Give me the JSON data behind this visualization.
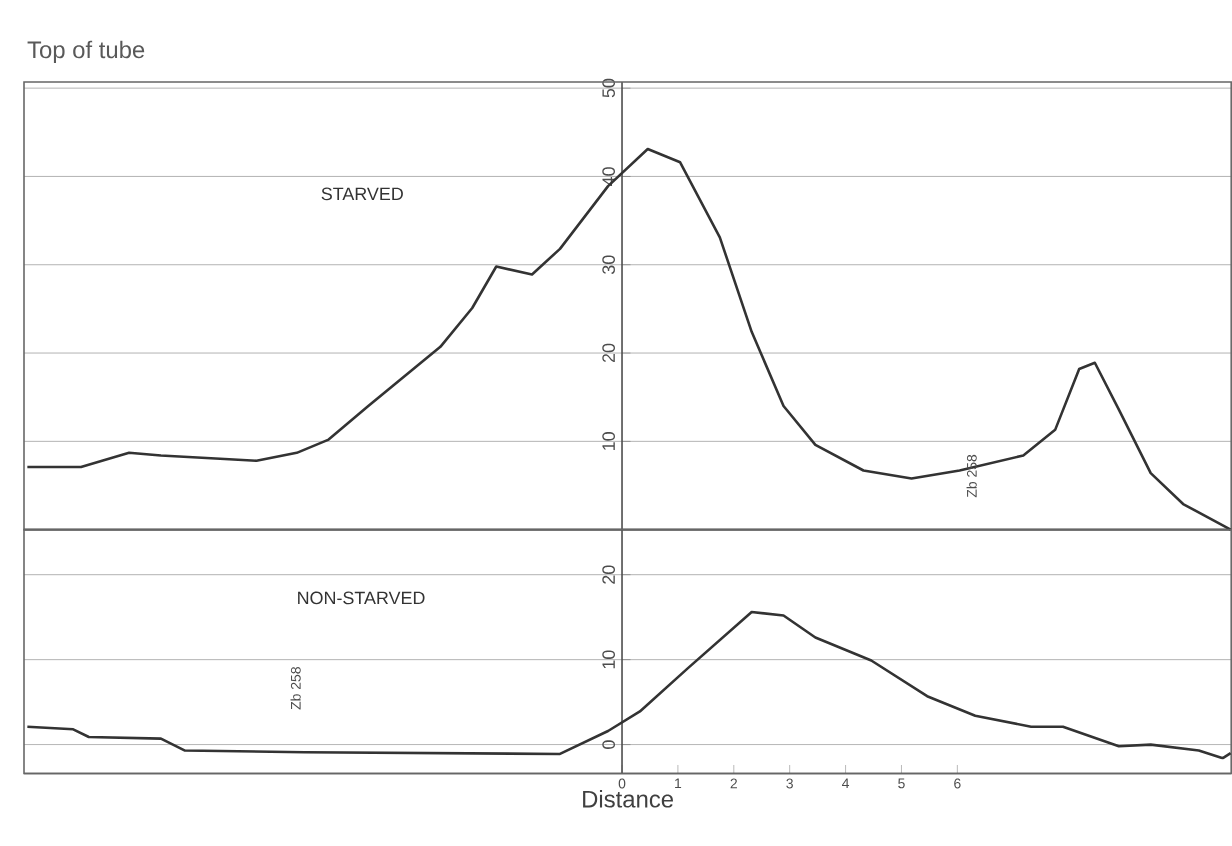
{
  "chart_data": [
    {
      "type": "line",
      "title": "Top of tube",
      "annotations": [
        "Zb 258"
      ],
      "xlim": [
        -10.7,
        10.9
      ],
      "ylim": [
        0,
        50.7
      ],
      "yticks": [
        10,
        20,
        30,
        40,
        50
      ],
      "tick_labels": "y",
      "grid": "y",
      "series": [
        {
          "name": "STARVED",
          "color": "#333333",
          "x": [
            -10.64,
            -9.68,
            -8.82,
            -8.25,
            -7.11,
            -6.54,
            -5.82,
            -5.25,
            -4.54,
            -3.25,
            -2.68,
            -2.25,
            -1.61,
            -1.11,
            -0.25,
            0.46,
            1.04,
            1.75,
            2.32,
            2.89,
            3.46,
            4.32,
            5.18,
            6.04,
            7.18,
            7.75,
            8.18,
            8.46,
            8.89,
            9.46,
            10.04,
            10.89
          ],
          "values": [
            7.1,
            7.1,
            8.7,
            8.4,
            8.0,
            7.8,
            8.7,
            10.2,
            14.0,
            20.7,
            25.1,
            29.8,
            28.9,
            31.8,
            38.9,
            43.1,
            41.6,
            33.1,
            22.4,
            14.0,
            9.6,
            6.7,
            5.8,
            6.7,
            8.4,
            11.3,
            18.2,
            18.9,
            13.6,
            6.4,
            2.9,
            0
          ]
        }
      ]
    },
    {
      "type": "line",
      "xlabel": "Distance",
      "annotations": [
        "Zb 258"
      ],
      "xlim": [
        -10.7,
        10.9
      ],
      "xticks": [
        0,
        1,
        2,
        3,
        4,
        5,
        6
      ],
      "ylim": [
        -3.4,
        25.3
      ],
      "yticks": [
        0,
        10,
        20
      ],
      "grid": "y",
      "series": [
        {
          "name": "NON-STARVED",
          "color": "#333333",
          "x": [
            -10.64,
            -9.82,
            -9.54,
            -8.25,
            -7.82,
            -5.68,
            -1.11,
            -0.25,
            0.32,
            1.18,
            2.32,
            2.89,
            3.46,
            4.46,
            5.46,
            6.32,
            7.32,
            7.89,
            8.89,
            9.46,
            10.32,
            10.75,
            10.89
          ],
          "values": [
            2.1,
            1.8,
            0.9,
            0.7,
            -0.7,
            -0.9,
            -1.1,
            1.6,
            3.9,
            9.0,
            15.6,
            15.2,
            12.6,
            9.9,
            5.7,
            3.4,
            2.1,
            2.1,
            -0.2,
            0,
            -0.7,
            -1.6,
            -1.0
          ]
        }
      ]
    }
  ]
}
